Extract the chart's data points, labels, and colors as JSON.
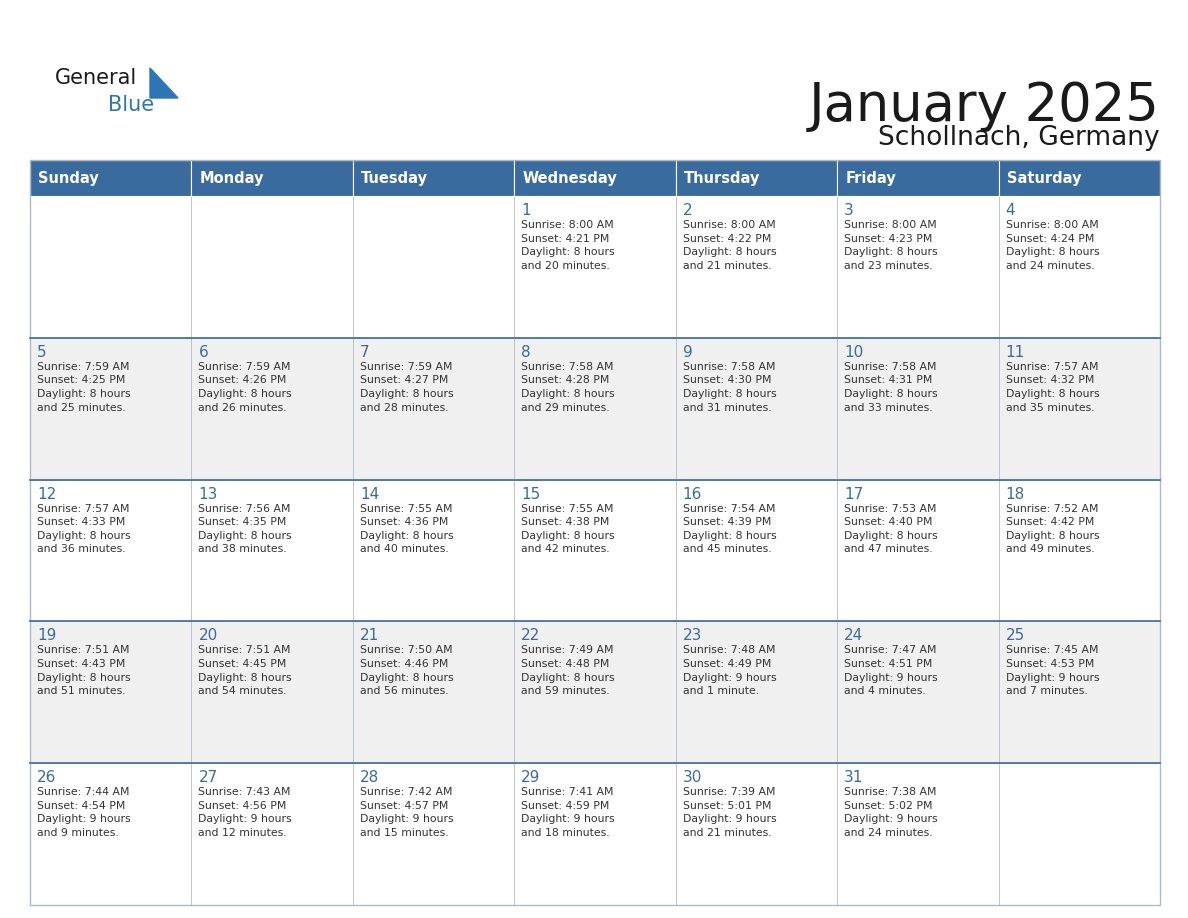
{
  "title": "January 2025",
  "subtitle": "Schollnach, Germany",
  "days_of_week": [
    "Sunday",
    "Monday",
    "Tuesday",
    "Wednesday",
    "Thursday",
    "Friday",
    "Saturday"
  ],
  "header_bg": "#3A6B9E",
  "header_text": "#FFFFFF",
  "cell_bg_white": "#FFFFFF",
  "cell_bg_gray": "#F0F0F0",
  "day_number_color": "#3A6B9E",
  "text_color": "#333333",
  "grid_color": "#B0B8C8",
  "title_color": "#1a1a1a",
  "logo_general_color": "#1a1a1a",
  "logo_blue_color": "#2E75B6",
  "weeks": [
    [
      {
        "day": null,
        "info": null
      },
      {
        "day": null,
        "info": null
      },
      {
        "day": null,
        "info": null
      },
      {
        "day": 1,
        "info": "Sunrise: 8:00 AM\nSunset: 4:21 PM\nDaylight: 8 hours\nand 20 minutes."
      },
      {
        "day": 2,
        "info": "Sunrise: 8:00 AM\nSunset: 4:22 PM\nDaylight: 8 hours\nand 21 minutes."
      },
      {
        "day": 3,
        "info": "Sunrise: 8:00 AM\nSunset: 4:23 PM\nDaylight: 8 hours\nand 23 minutes."
      },
      {
        "day": 4,
        "info": "Sunrise: 8:00 AM\nSunset: 4:24 PM\nDaylight: 8 hours\nand 24 minutes."
      }
    ],
    [
      {
        "day": 5,
        "info": "Sunrise: 7:59 AM\nSunset: 4:25 PM\nDaylight: 8 hours\nand 25 minutes."
      },
      {
        "day": 6,
        "info": "Sunrise: 7:59 AM\nSunset: 4:26 PM\nDaylight: 8 hours\nand 26 minutes."
      },
      {
        "day": 7,
        "info": "Sunrise: 7:59 AM\nSunset: 4:27 PM\nDaylight: 8 hours\nand 28 minutes."
      },
      {
        "day": 8,
        "info": "Sunrise: 7:58 AM\nSunset: 4:28 PM\nDaylight: 8 hours\nand 29 minutes."
      },
      {
        "day": 9,
        "info": "Sunrise: 7:58 AM\nSunset: 4:30 PM\nDaylight: 8 hours\nand 31 minutes."
      },
      {
        "day": 10,
        "info": "Sunrise: 7:58 AM\nSunset: 4:31 PM\nDaylight: 8 hours\nand 33 minutes."
      },
      {
        "day": 11,
        "info": "Sunrise: 7:57 AM\nSunset: 4:32 PM\nDaylight: 8 hours\nand 35 minutes."
      }
    ],
    [
      {
        "day": 12,
        "info": "Sunrise: 7:57 AM\nSunset: 4:33 PM\nDaylight: 8 hours\nand 36 minutes."
      },
      {
        "day": 13,
        "info": "Sunrise: 7:56 AM\nSunset: 4:35 PM\nDaylight: 8 hours\nand 38 minutes."
      },
      {
        "day": 14,
        "info": "Sunrise: 7:55 AM\nSunset: 4:36 PM\nDaylight: 8 hours\nand 40 minutes."
      },
      {
        "day": 15,
        "info": "Sunrise: 7:55 AM\nSunset: 4:38 PM\nDaylight: 8 hours\nand 42 minutes."
      },
      {
        "day": 16,
        "info": "Sunrise: 7:54 AM\nSunset: 4:39 PM\nDaylight: 8 hours\nand 45 minutes."
      },
      {
        "day": 17,
        "info": "Sunrise: 7:53 AM\nSunset: 4:40 PM\nDaylight: 8 hours\nand 47 minutes."
      },
      {
        "day": 18,
        "info": "Sunrise: 7:52 AM\nSunset: 4:42 PM\nDaylight: 8 hours\nand 49 minutes."
      }
    ],
    [
      {
        "day": 19,
        "info": "Sunrise: 7:51 AM\nSunset: 4:43 PM\nDaylight: 8 hours\nand 51 minutes."
      },
      {
        "day": 20,
        "info": "Sunrise: 7:51 AM\nSunset: 4:45 PM\nDaylight: 8 hours\nand 54 minutes."
      },
      {
        "day": 21,
        "info": "Sunrise: 7:50 AM\nSunset: 4:46 PM\nDaylight: 8 hours\nand 56 minutes."
      },
      {
        "day": 22,
        "info": "Sunrise: 7:49 AM\nSunset: 4:48 PM\nDaylight: 8 hours\nand 59 minutes."
      },
      {
        "day": 23,
        "info": "Sunrise: 7:48 AM\nSunset: 4:49 PM\nDaylight: 9 hours\nand 1 minute."
      },
      {
        "day": 24,
        "info": "Sunrise: 7:47 AM\nSunset: 4:51 PM\nDaylight: 9 hours\nand 4 minutes."
      },
      {
        "day": 25,
        "info": "Sunrise: 7:45 AM\nSunset: 4:53 PM\nDaylight: 9 hours\nand 7 minutes."
      }
    ],
    [
      {
        "day": 26,
        "info": "Sunrise: 7:44 AM\nSunset: 4:54 PM\nDaylight: 9 hours\nand 9 minutes."
      },
      {
        "day": 27,
        "info": "Sunrise: 7:43 AM\nSunset: 4:56 PM\nDaylight: 9 hours\nand 12 minutes."
      },
      {
        "day": 28,
        "info": "Sunrise: 7:42 AM\nSunset: 4:57 PM\nDaylight: 9 hours\nand 15 minutes."
      },
      {
        "day": 29,
        "info": "Sunrise: 7:41 AM\nSunset: 4:59 PM\nDaylight: 9 hours\nand 18 minutes."
      },
      {
        "day": 30,
        "info": "Sunrise: 7:39 AM\nSunset: 5:01 PM\nDaylight: 9 hours\nand 21 minutes."
      },
      {
        "day": 31,
        "info": "Sunrise: 7:38 AM\nSunset: 5:02 PM\nDaylight: 9 hours\nand 24 minutes."
      },
      {
        "day": null,
        "info": null
      }
    ]
  ]
}
